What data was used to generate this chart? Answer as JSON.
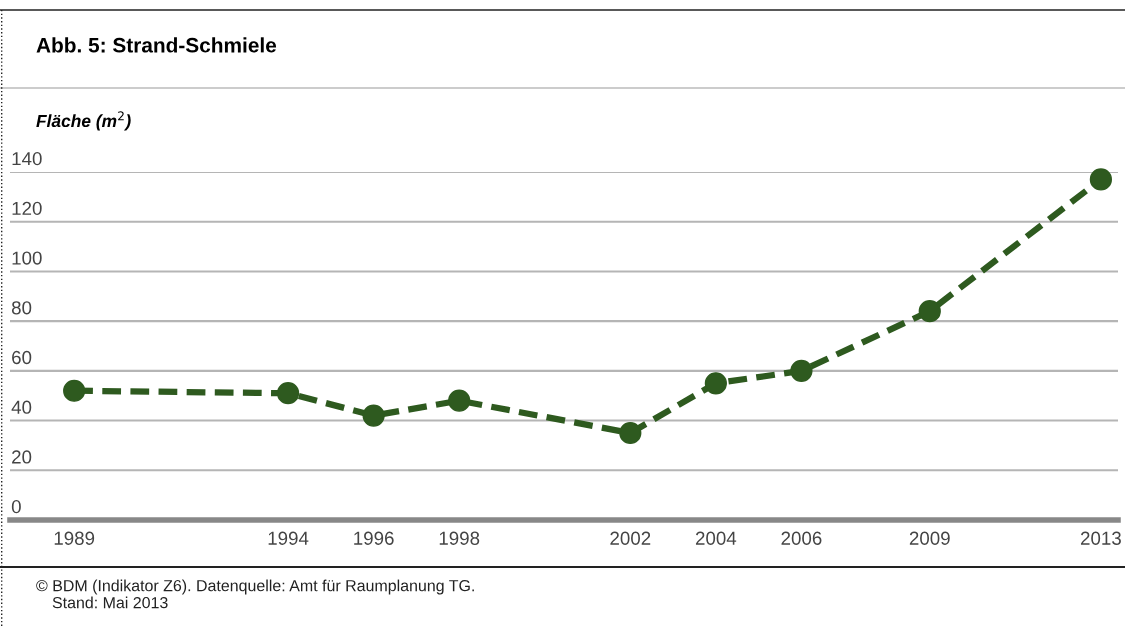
{
  "chart_data": {
    "type": "line",
    "title": "Abb. 5: Strand-Schmiele",
    "ylabel": "Fläche (m$^{2}$)",
    "x": [
      1989,
      1994,
      1996,
      1998,
      2002,
      2004,
      2006,
      2009,
      2013
    ],
    "series": [
      {
        "color": "#2e5a1f",
        "values": [
          52,
          51,
          42,
          48,
          35,
          55,
          60,
          84,
          137
        ]
      }
    ],
    "xlim": [
      1987.5,
      2013.4
    ],
    "xticks": [
      1989,
      1994,
      1996,
      1998,
      2002,
      2004,
      2006,
      2009,
      2013
    ],
    "ylim": [
      0,
      140
    ],
    "yticks": [
      0,
      20,
      40,
      60,
      80,
      100,
      120,
      140
    ],
    "grid": "y",
    "marker": "circle",
    "line_style": "dashed",
    "annotations": [
      "© BDM (Indikator Z6). Datenquelle: Amt für Raumplanung TG.",
      "Stand: Mai 2013"
    ]
  }
}
